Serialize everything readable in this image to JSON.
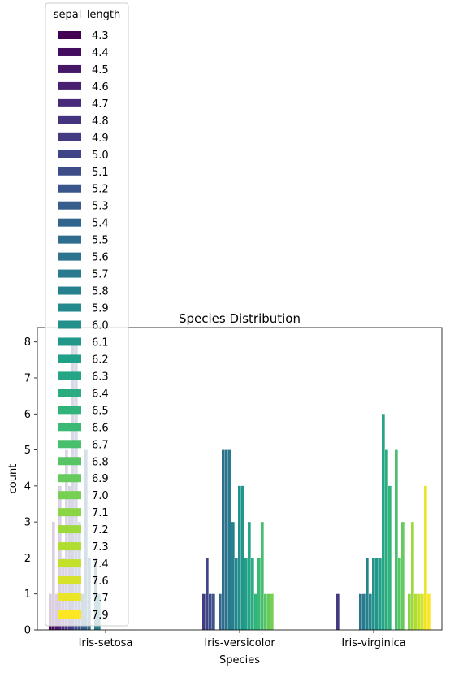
{
  "chart_data": {
    "type": "bar",
    "title": "Species Distribution",
    "xlabel": "Species",
    "ylabel": "count",
    "ylim": [
      0,
      8.4
    ],
    "yticks": [
      0,
      1,
      2,
      3,
      4,
      5,
      6,
      7,
      8
    ],
    "categories": [
      "Iris-setosa",
      "Iris-versicolor",
      "Iris-virginica"
    ],
    "legend": {
      "title": "sepal_length",
      "placement": "top-left"
    },
    "colormap": "viridis",
    "series": [
      {
        "name": "4.3",
        "values": [
          1,
          0,
          0
        ]
      },
      {
        "name": "4.4",
        "values": [
          3,
          0,
          0
        ]
      },
      {
        "name": "4.5",
        "values": [
          1,
          0,
          0
        ]
      },
      {
        "name": "4.6",
        "values": [
          4,
          0,
          0
        ]
      },
      {
        "name": "4.7",
        "values": [
          2,
          0,
          0
        ]
      },
      {
        "name": "4.8",
        "values": [
          5,
          0,
          0
        ]
      },
      {
        "name": "4.9",
        "values": [
          4,
          1,
          1
        ]
      },
      {
        "name": "5.0",
        "values": [
          8,
          2,
          0
        ]
      },
      {
        "name": "5.1",
        "values": [
          8,
          1,
          0
        ]
      },
      {
        "name": "5.2",
        "values": [
          3,
          1,
          0
        ]
      },
      {
        "name": "5.3",
        "values": [
          1,
          0,
          0
        ]
      },
      {
        "name": "5.4",
        "values": [
          5,
          1,
          0
        ]
      },
      {
        "name": "5.5",
        "values": [
          2,
          5,
          0
        ]
      },
      {
        "name": "5.6",
        "values": [
          0,
          5,
          1
        ]
      },
      {
        "name": "5.7",
        "values": [
          2,
          5,
          1
        ]
      },
      {
        "name": "5.8",
        "values": [
          1,
          3,
          2
        ]
      },
      {
        "name": "5.9",
        "values": [
          0,
          2,
          1
        ]
      },
      {
        "name": "6.0",
        "values": [
          0,
          4,
          2
        ]
      },
      {
        "name": "6.1",
        "values": [
          0,
          4,
          2
        ]
      },
      {
        "name": "6.2",
        "values": [
          0,
          2,
          2
        ]
      },
      {
        "name": "6.3",
        "values": [
          0,
          3,
          6
        ]
      },
      {
        "name": "6.4",
        "values": [
          0,
          2,
          5
        ]
      },
      {
        "name": "6.5",
        "values": [
          0,
          1,
          4
        ]
      },
      {
        "name": "6.6",
        "values": [
          0,
          2,
          0
        ]
      },
      {
        "name": "6.7",
        "values": [
          0,
          3,
          5
        ]
      },
      {
        "name": "6.8",
        "values": [
          0,
          1,
          2
        ]
      },
      {
        "name": "6.9",
        "values": [
          0,
          1,
          3
        ]
      },
      {
        "name": "7.0",
        "values": [
          0,
          1,
          0
        ]
      },
      {
        "name": "7.1",
        "values": [
          0,
          0,
          1
        ]
      },
      {
        "name": "7.2",
        "values": [
          0,
          0,
          3
        ]
      },
      {
        "name": "7.3",
        "values": [
          0,
          0,
          1
        ]
      },
      {
        "name": "7.4",
        "values": [
          0,
          0,
          1
        ]
      },
      {
        "name": "7.6",
        "values": [
          0,
          0,
          1
        ]
      },
      {
        "name": "7.7",
        "values": [
          0,
          0,
          4
        ]
      },
      {
        "name": "7.9",
        "values": [
          0,
          0,
          1
        ]
      }
    ]
  }
}
